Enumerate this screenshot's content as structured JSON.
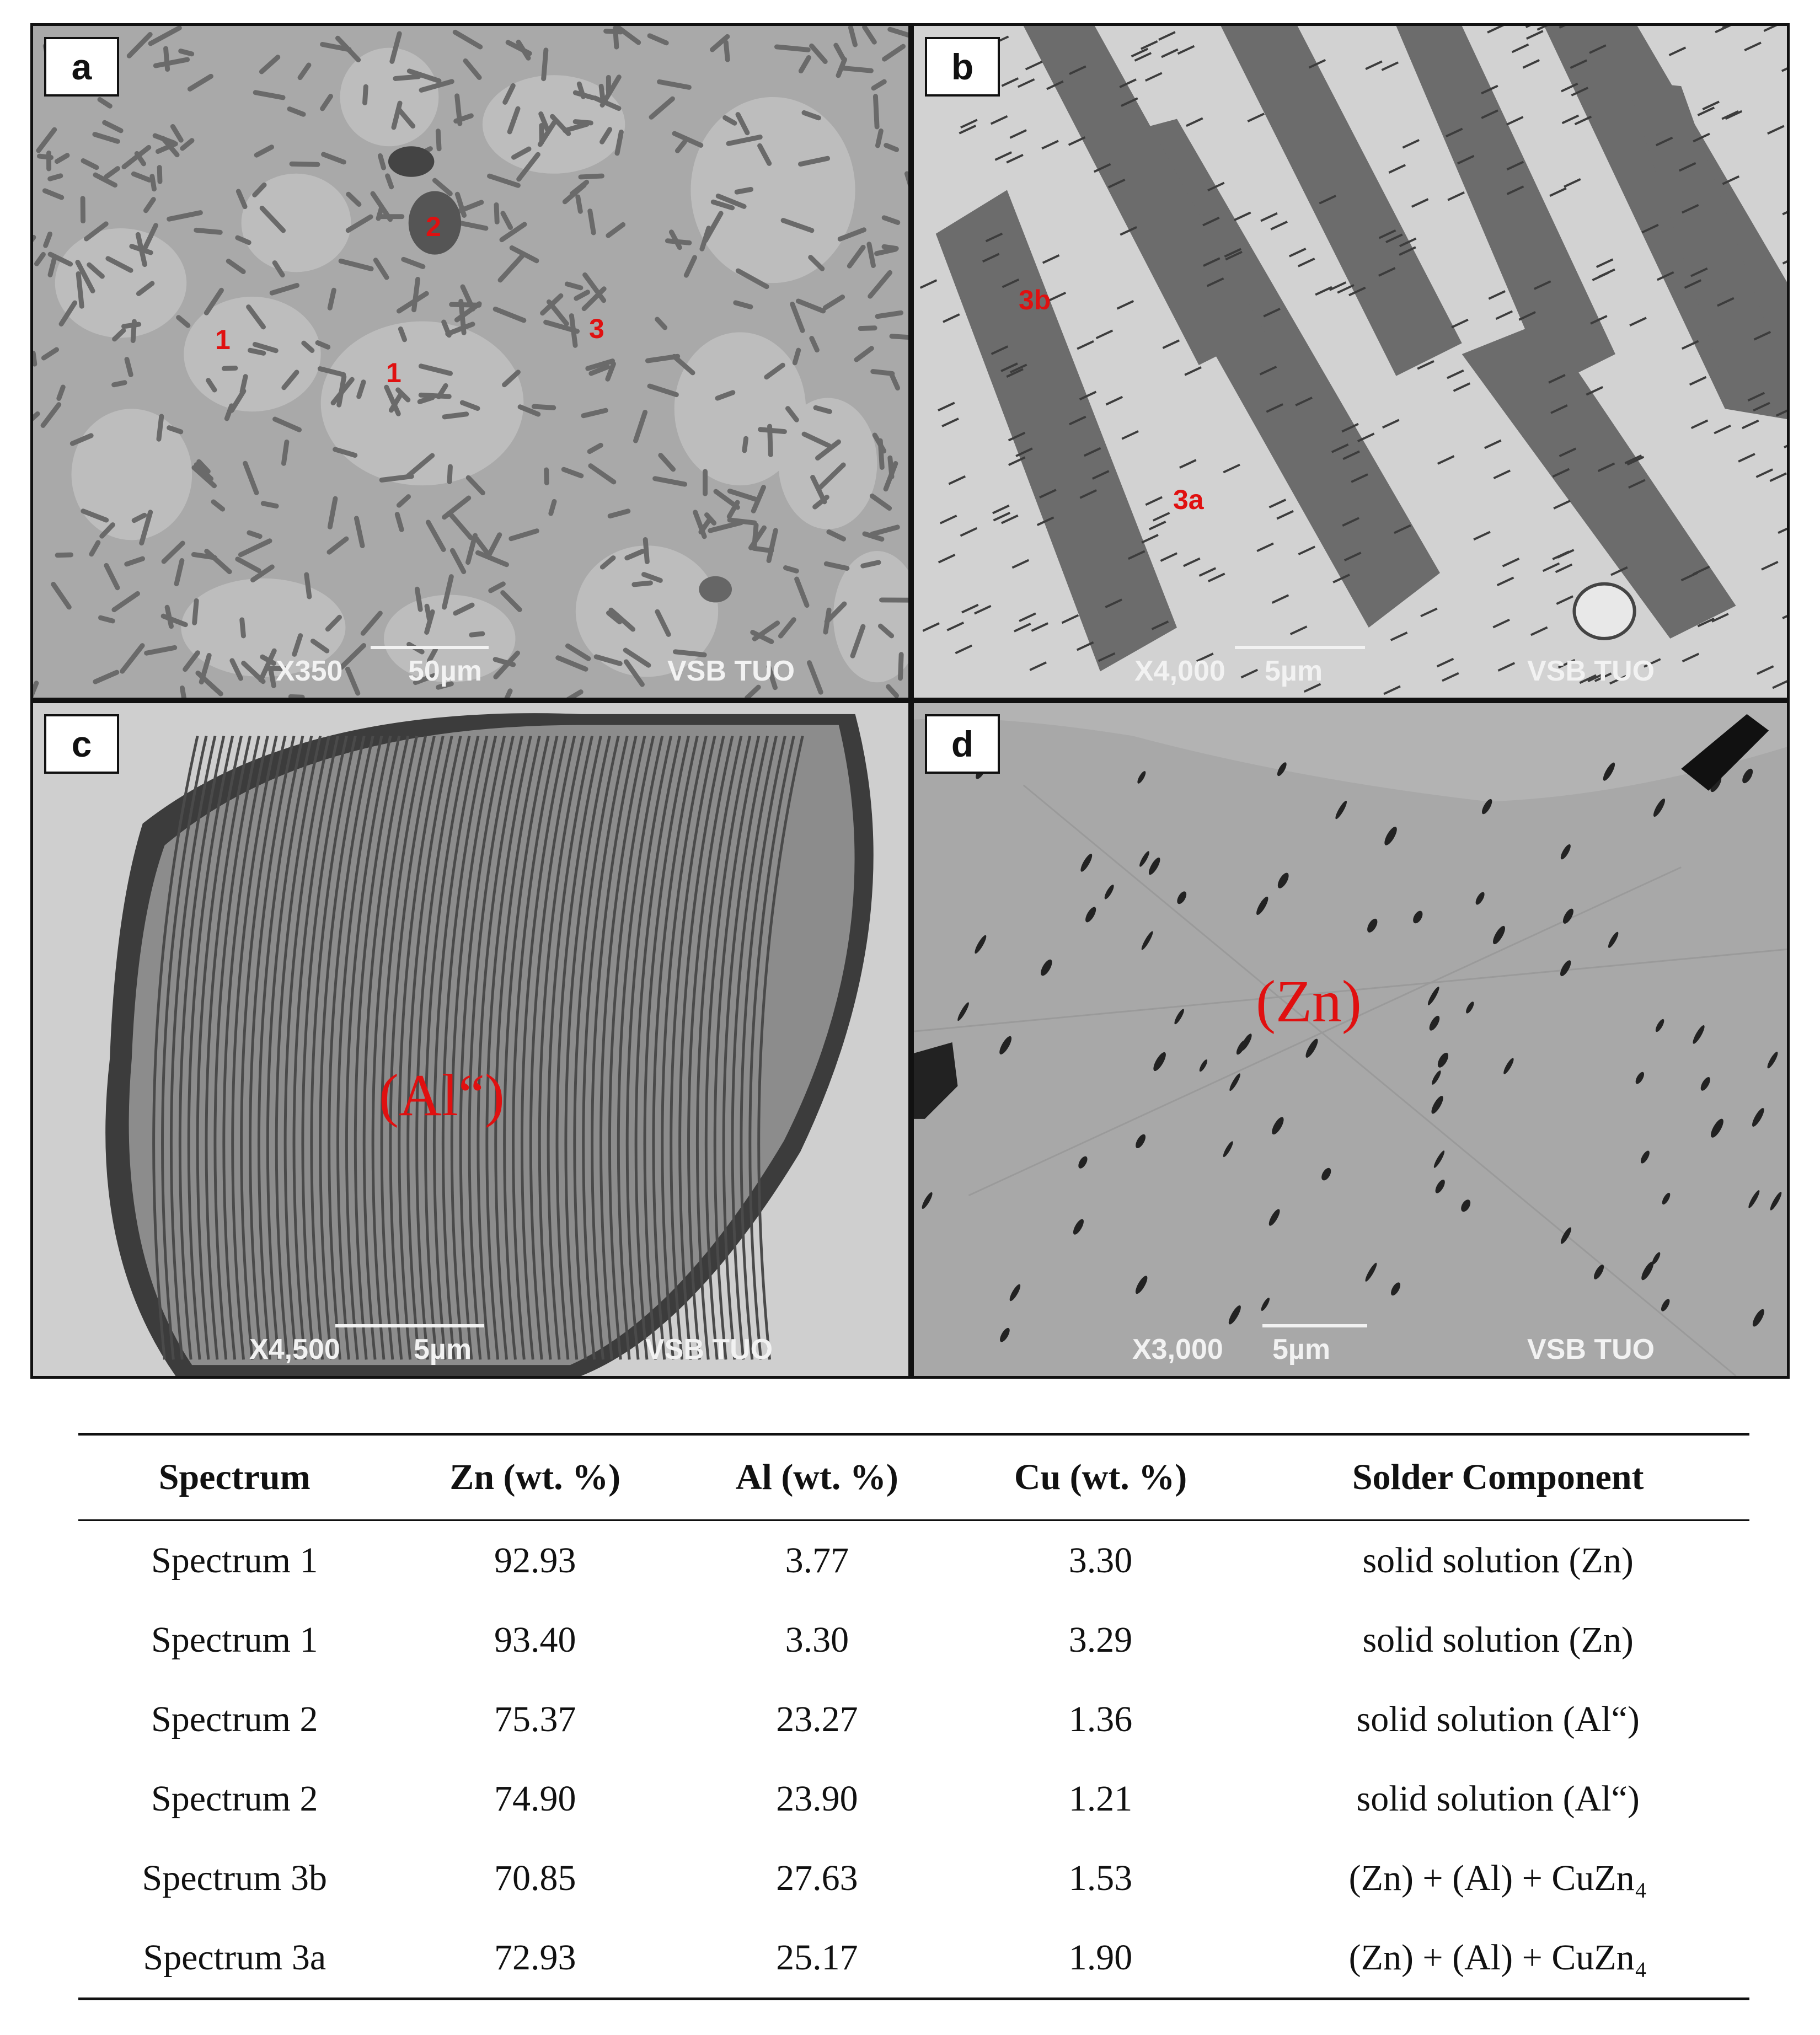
{
  "panels": {
    "a": {
      "label": "a",
      "mag": "X350",
      "scale": "50µm",
      "credit": "VSB TUO",
      "markers": [
        "1",
        "1",
        "2",
        "3"
      ]
    },
    "b": {
      "label": "b",
      "mag": "X4,000",
      "scale": "5µm",
      "credit": "VSB TUO",
      "markers": [
        "3b",
        "3a"
      ]
    },
    "c": {
      "label": "c",
      "mag": "X4,500",
      "scale": "5µm",
      "credit": "VSB TUO",
      "phase": "(Al“)"
    },
    "d": {
      "label": "d",
      "mag": "X3,000",
      "scale": "5µm",
      "credit": "VSB TUO",
      "phase": "(Zn)"
    }
  },
  "table": {
    "headers": [
      "Spectrum",
      "Zn (wt. %)",
      "Al (wt. %)",
      "Cu (wt. %)",
      "Solder Component"
    ],
    "rows": [
      [
        "Spectrum 1",
        "92.93",
        "3.77",
        "3.30",
        "solid solution (Zn)"
      ],
      [
        "Spectrum 1",
        "93.40",
        "3.30",
        "3.29",
        "solid solution (Zn)"
      ],
      [
        "Spectrum 2",
        "75.37",
        "23.27",
        "1.36",
        "solid solution (Al“)"
      ],
      [
        "Spectrum 2",
        "74.90",
        "23.90",
        "1.21",
        "solid solution (Al“)"
      ],
      [
        "Spectrum 3b",
        "70.85",
        "27.63",
        "1.53",
        "(Zn) + (Al) + CuZn₄"
      ],
      [
        "Spectrum 3a",
        "72.93",
        "25.17",
        "1.90",
        "(Zn) + (Al) + CuZn₄"
      ]
    ]
  },
  "colors": {
    "marker": "#e01010",
    "sem_gray": "#b4b4b4",
    "sem_dark": "#505050"
  }
}
